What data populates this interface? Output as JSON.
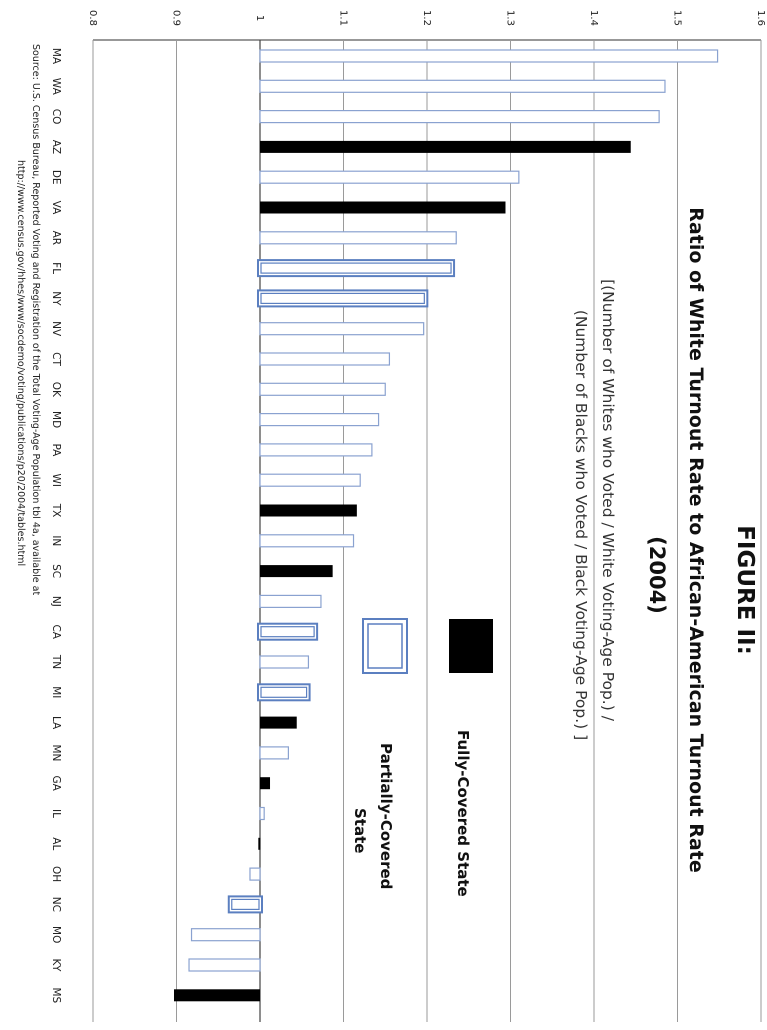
{
  "chart_data": {
    "type": "bar",
    "figure_label": "FIGURE II:",
    "title": "Ratio of White Turnout Rate to African-American Turnout Rate",
    "title_year": "(2004)",
    "subtitle_line1": "[(Number of Whites who Voted / White Voting-Age Pop.) /",
    "subtitle_line2": "(Number of Blacks who Voted / Black Voting-Age Pop.) ]",
    "ylim": [
      0.8,
      1.6
    ],
    "ticks": [
      "0.8",
      "0.9",
      "1",
      "1.1",
      "1.2",
      "1.3",
      "1.4",
      "1.5",
      "1.6"
    ],
    "grid": true,
    "baseline": 1.0,
    "legend": [
      {
        "key": "full",
        "label_line1": "Fully-Covered State",
        "label_line2": ""
      },
      {
        "key": "partial",
        "label_line1": "Partially-Covered",
        "label_line2": "State"
      }
    ],
    "categories": [
      "MA",
      "WA",
      "CO",
      "AZ",
      "DE",
      "VA",
      "AR",
      "FL",
      "NY",
      "NV",
      "CT",
      "OK",
      "MD",
      "PA",
      "WI",
      "TX",
      "IN",
      "SC",
      "NJ",
      "CA",
      "TN",
      "MI",
      "LA",
      "MN",
      "GA",
      "IL",
      "AL",
      "OH",
      "NC",
      "MO",
      "KY",
      "MS"
    ],
    "values": [
      1.548,
      1.485,
      1.478,
      1.444,
      1.31,
      1.294,
      1.235,
      1.23,
      1.198,
      1.196,
      1.155,
      1.15,
      1.142,
      1.134,
      1.12,
      1.116,
      1.112,
      1.087,
      1.073,
      1.066,
      1.058,
      1.057,
      1.044,
      1.034,
      1.012,
      1.005,
      0.998,
      0.988,
      0.965,
      0.918,
      0.915,
      0.897
    ],
    "coverage": [
      "none",
      "none",
      "none",
      "full",
      "none",
      "full",
      "none",
      "partial",
      "partial",
      "none",
      "none",
      "none",
      "none",
      "none",
      "none",
      "full",
      "none",
      "full",
      "none",
      "partial",
      "none",
      "partial",
      "full",
      "none",
      "full",
      "none",
      "full",
      "none",
      "partial",
      "none",
      "none",
      "full"
    ],
    "source_line1": "Source: U.S. Census Bureau, Reported Voting and Registration of the Total Voting-Age Population tbl 4a, available at",
    "source_line2": "http://www.census.gov/hhes/www/socdemo/voting/publications/p20/2004/tables.html"
  }
}
